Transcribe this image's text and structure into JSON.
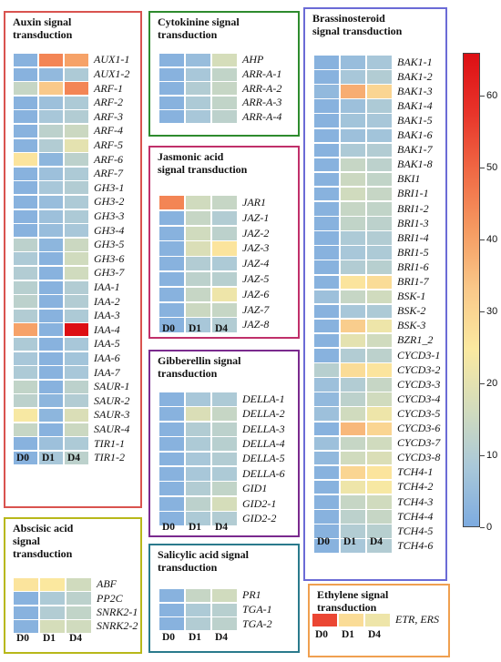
{
  "chart_data": {
    "type": "heatmap",
    "colorbar": {
      "ticks": [
        0,
        10,
        20,
        30,
        40,
        50,
        60
      ],
      "range": [
        0,
        66
      ],
      "colors": [
        "#7dabe0",
        "#a9c8d9",
        "#d3dcbc",
        "#fbe9a0",
        "#f9c98a",
        "#f59b62",
        "#f06a45",
        "#e8342a",
        "#dd0f14"
      ]
    },
    "columns": [
      "D0",
      "D1",
      "D4"
    ],
    "panels": [
      {
        "id": "auxin",
        "title": "Auxin signal\ntransduction",
        "border": "#d9534f",
        "rows": [
          {
            "gene": "AUX1-1",
            "values": [
              2,
              45,
              40
            ]
          },
          {
            "gene": "AUX1-2",
            "values": [
              2,
              4,
              9
            ]
          },
          {
            "gene": "ARF-1",
            "values": [
              14,
              33,
              45
            ]
          },
          {
            "gene": "ARF-2",
            "values": [
              2,
              6,
              9
            ]
          },
          {
            "gene": "ARF-3",
            "values": [
              2,
              8,
              10
            ]
          },
          {
            "gene": "ARF-4",
            "values": [
              2,
              12,
              15
            ]
          },
          {
            "gene": "ARF-5",
            "values": [
              2,
              10,
              20
            ]
          },
          {
            "gene": "ARF-6",
            "values": [
              26,
              3,
              12
            ]
          },
          {
            "gene": "ARF-7",
            "values": [
              2,
              6,
              9
            ]
          },
          {
            "gene": "GH3-1",
            "values": [
              2,
              8,
              10
            ]
          },
          {
            "gene": "GH3-2",
            "values": [
              2,
              5,
              9
            ]
          },
          {
            "gene": "GH3-3",
            "values": [
              2,
              6,
              9
            ]
          },
          {
            "gene": "GH3-4",
            "values": [
              2,
              5,
              8
            ]
          },
          {
            "gene": "GH3-5",
            "values": [
              12,
              3,
              15
            ]
          },
          {
            "gene": "GH3-6",
            "values": [
              9,
              2,
              16
            ]
          },
          {
            "gene": "GH3-7",
            "values": [
              10,
              2,
              16
            ]
          },
          {
            "gene": "IAA-1",
            "values": [
              11,
              2,
              10
            ]
          },
          {
            "gene": "IAA-2",
            "values": [
              12,
              2,
              10
            ]
          },
          {
            "gene": "IAA-3",
            "values": [
              10,
              2,
              9
            ]
          },
          {
            "gene": "IAA-4",
            "values": [
              40,
              2,
              66
            ]
          },
          {
            "gene": "IAA-5",
            "values": [
              9,
              2,
              8
            ]
          },
          {
            "gene": "IAA-6",
            "values": [
              8,
              2,
              7
            ]
          },
          {
            "gene": "IAA-7",
            "values": [
              9,
              2,
              8
            ]
          },
          {
            "gene": "SAUR-1",
            "values": [
              13,
              2,
              12
            ]
          },
          {
            "gene": "SAUR-2",
            "values": [
              12,
              3,
              10
            ]
          },
          {
            "gene": "SAUR-3",
            "values": [
              24,
              3,
              18
            ]
          },
          {
            "gene": "SAUR-4",
            "values": [
              14,
              2,
              15
            ]
          },
          {
            "gene": "TIR1-1",
            "values": [
              2,
              6,
              9
            ]
          },
          {
            "gene": "TIR1-2",
            "values": [
              2,
              8,
              12
            ]
          }
        ]
      },
      {
        "id": "cytokinine",
        "title": "Cytokinine signal\ntransduction",
        "border": "#2e8b2e",
        "rows": [
          {
            "gene": "AHP",
            "values": [
              2,
              5,
              17
            ]
          },
          {
            "gene": "ARR-A-1",
            "values": [
              2,
              8,
              13
            ]
          },
          {
            "gene": "ARR-A-2",
            "values": [
              2,
              10,
              14
            ]
          },
          {
            "gene": "ARR-A-3",
            "values": [
              2,
              9,
              13
            ]
          },
          {
            "gene": "ARR-A-4",
            "values": [
              2,
              8,
              12
            ]
          }
        ]
      },
      {
        "id": "jasmonic",
        "title": "Jasmonic acid\nsignal transduction",
        "border": "#c0306a",
        "rows": [
          {
            "gene": "JAR1",
            "values": [
              45,
              16,
              14
            ]
          },
          {
            "gene": "JAZ-1",
            "values": [
              2,
              14,
              10
            ]
          },
          {
            "gene": "JAZ-2",
            "values": [
              2,
              16,
              12
            ]
          },
          {
            "gene": "JAZ-3",
            "values": [
              2,
              18,
              26
            ]
          },
          {
            "gene": "JAZ-4",
            "values": [
              2,
              10,
              9
            ]
          },
          {
            "gene": "JAZ-5",
            "values": [
              2,
              12,
              11
            ]
          },
          {
            "gene": "JAZ-6",
            "values": [
              2,
              14,
              22
            ]
          },
          {
            "gene": "JAZ-7",
            "values": [
              2,
              15,
              14
            ]
          },
          {
            "gene": "JAZ-8",
            "values": [
              2,
              8,
              10
            ]
          }
        ]
      },
      {
        "id": "gibberellin",
        "title": "Gibberellin signal\ntransduction",
        "border": "#7a2a8e",
        "rows": [
          {
            "gene": "DELLA-1",
            "values": [
              2,
              8,
              9
            ]
          },
          {
            "gene": "DELLA-2",
            "values": [
              2,
              18,
              14
            ]
          },
          {
            "gene": "DELLA-3",
            "values": [
              2,
              10,
              12
            ]
          },
          {
            "gene": "DELLA-4",
            "values": [
              2,
              9,
              11
            ]
          },
          {
            "gene": "DELLA-5",
            "values": [
              2,
              8,
              10
            ]
          },
          {
            "gene": "DELLA-6",
            "values": [
              2,
              8,
              9
            ]
          },
          {
            "gene": "GID1",
            "values": [
              2,
              10,
              13
            ]
          },
          {
            "gene": "GID2-1",
            "values": [
              2,
              12,
              17
            ]
          },
          {
            "gene": "GID2-2",
            "values": [
              2,
              9,
              10
            ]
          }
        ]
      },
      {
        "id": "brassinosteroid",
        "title": "Brassinosteroid\nsignal transduction",
        "border": "#6b6bd6",
        "rows": [
          {
            "gene": "BAK1-1",
            "values": [
              2,
              5,
              8
            ]
          },
          {
            "gene": "BAK1-2",
            "values": [
              2,
              8,
              10
            ]
          },
          {
            "gene": "BAK1-3",
            "values": [
              4,
              38,
              30
            ]
          },
          {
            "gene": "BAK1-4",
            "values": [
              2,
              6,
              9
            ]
          },
          {
            "gene": "BAK1-5",
            "values": [
              2,
              7,
              8
            ]
          },
          {
            "gene": "BAK1-6",
            "values": [
              2,
              6,
              7
            ]
          },
          {
            "gene": "BAK1-7",
            "values": [
              2,
              9,
              10
            ]
          },
          {
            "gene": "BAK1-8",
            "values": [
              2,
              14,
              12
            ]
          },
          {
            "gene": "BKI1",
            "values": [
              2,
              15,
              13
            ]
          },
          {
            "gene": "BRI1-1",
            "values": [
              2,
              16,
              14
            ]
          },
          {
            "gene": "BRI1-2",
            "values": [
              2,
              14,
              13
            ]
          },
          {
            "gene": "BRI1-3",
            "values": [
              2,
              13,
              12
            ]
          },
          {
            "gene": "BRI1-4",
            "values": [
              2,
              9,
              10
            ]
          },
          {
            "gene": "BRI1-5",
            "values": [
              2,
              8,
              9
            ]
          },
          {
            "gene": "BRI1-6",
            "values": [
              2,
              10,
              11
            ]
          },
          {
            "gene": "BRI1-7",
            "values": [
              2,
              26,
              28
            ]
          },
          {
            "gene": "BSK-1",
            "values": [
              6,
              14,
              16
            ]
          },
          {
            "gene": "BSK-2",
            "values": [
              2,
              8,
              9
            ]
          },
          {
            "gene": "BSK-3",
            "values": [
              2,
              32,
              22
            ]
          },
          {
            "gene": "BZR1_2",
            "values": [
              2,
              20,
              16
            ]
          },
          {
            "gene": "CYCD3-1",
            "values": [
              2,
              10,
              12
            ]
          },
          {
            "gene": "CYCD3-2",
            "values": [
              11,
              28,
              26
            ]
          },
          {
            "gene": "CYCD3-3",
            "values": [
              6,
              10,
              14
            ]
          },
          {
            "gene": "CYCD3-4",
            "values": [
              4,
              12,
              16
            ]
          },
          {
            "gene": "CYCD3-5",
            "values": [
              6,
              16,
              22
            ]
          },
          {
            "gene": "CYCD3-6",
            "values": [
              2,
              36,
              30
            ]
          },
          {
            "gene": "CYCD3-7",
            "values": [
              6,
              14,
              16
            ]
          },
          {
            "gene": "CYCD3-8",
            "values": [
              4,
              16,
              18
            ]
          },
          {
            "gene": "TCH4-1",
            "values": [
              2,
              30,
              26
            ]
          },
          {
            "gene": "TCH4-2",
            "values": [
              2,
              22,
              24
            ]
          },
          {
            "gene": "TCH4-3",
            "values": [
              2,
              14,
              16
            ]
          },
          {
            "gene": "TCH4-4",
            "values": [
              2,
              12,
              14
            ]
          },
          {
            "gene": "TCH4-5",
            "values": [
              2,
              10,
              11
            ]
          },
          {
            "gene": "TCH4-6",
            "values": [
              2,
              8,
              10
            ]
          }
        ]
      },
      {
        "id": "abscisic",
        "title": "Abscisic acid\nsignal\ntransduction",
        "border": "#b8b81a",
        "rows": [
          {
            "gene": "ABF",
            "values": [
              26,
              25,
              16
            ]
          },
          {
            "gene": "PP2C",
            "values": [
              2,
              9,
              12
            ]
          },
          {
            "gene": "SNRK2-1",
            "values": [
              2,
              10,
              13
            ]
          },
          {
            "gene": "SNRK2-2",
            "values": [
              2,
              17,
              16
            ]
          }
        ]
      },
      {
        "id": "salicylic",
        "title": "Salicylic acid signal\ntransduction",
        "border": "#2a7a8c",
        "rows": [
          {
            "gene": "PR1",
            "values": [
              2,
              14,
              16
            ]
          },
          {
            "gene": "TGA-1",
            "values": [
              2,
              9,
              11
            ]
          },
          {
            "gene": "TGA-2",
            "values": [
              2,
              10,
              12
            ]
          }
        ]
      },
      {
        "id": "ethylene",
        "title": "Ethylene signal\ntransduction",
        "border": "#f0a050",
        "rows": [
          {
            "gene": "ETR, ERS",
            "values": [
              55,
              28,
              22
            ]
          }
        ]
      }
    ]
  }
}
